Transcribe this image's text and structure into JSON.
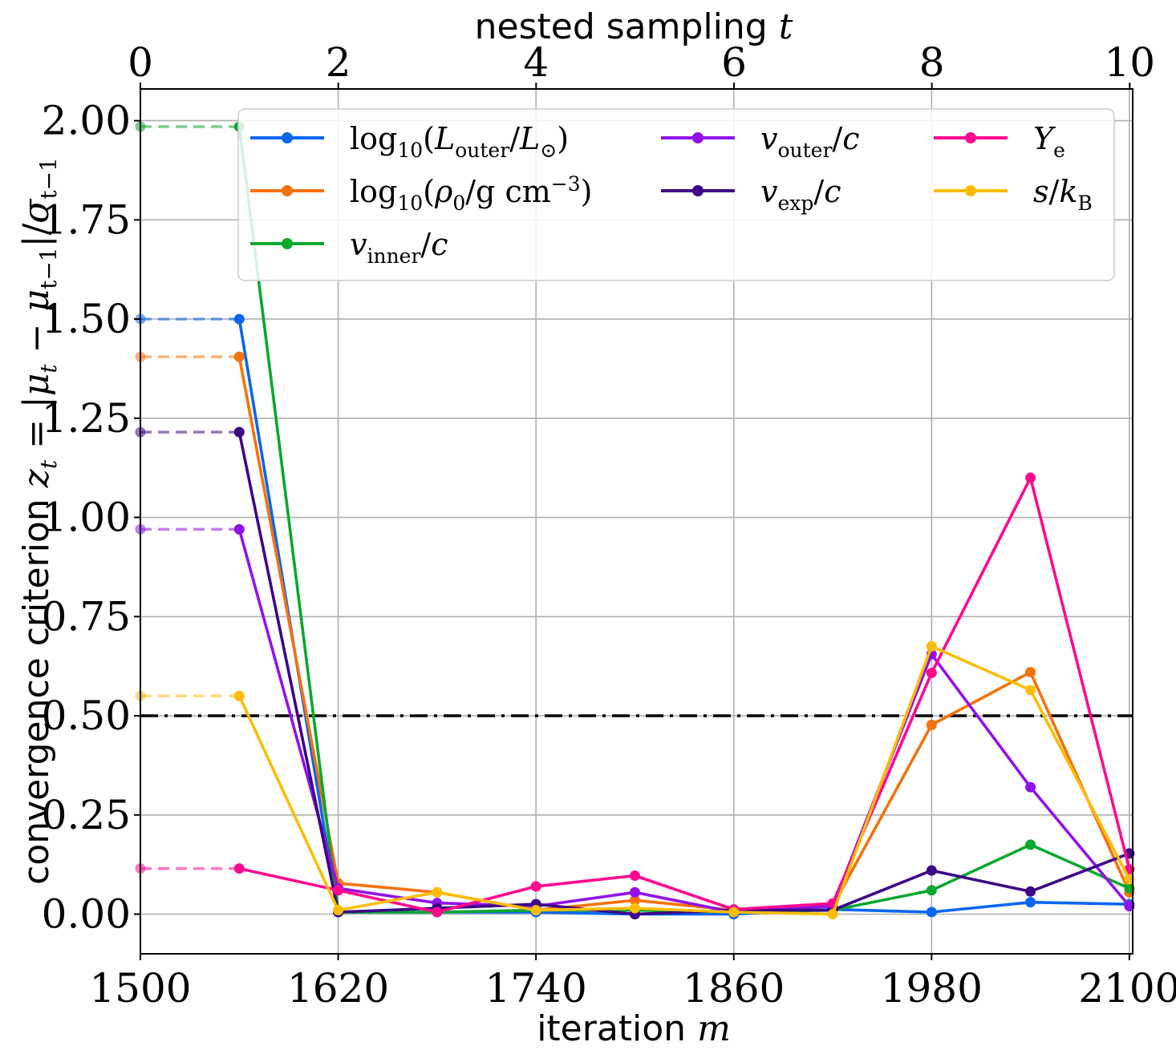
{
  "chart_data": {
    "type": "line",
    "xlabel": "iteration m",
    "xlabel_top": "nested sampling t",
    "ylabel": "convergence criterion z_t = |μ_t − μ_{t−1}|/σ_{t−1}",
    "xlim": [
      1500,
      2102
    ],
    "ylim": [
      -0.1,
      2.08
    ],
    "top_xlim": [
      0,
      10.03
    ],
    "x_ticks": [
      1500,
      1620,
      1740,
      1860,
      1980,
      2100
    ],
    "y_ticks": [
      0.0,
      0.25,
      0.5,
      0.75,
      1.0,
      1.25,
      1.5,
      1.75,
      2.0
    ],
    "y_tick_labels": [
      "0.00",
      "0.25",
      "0.50",
      "0.75",
      "1.00",
      "1.25",
      "1.50",
      "1.75",
      "2.00"
    ],
    "top_ticks": [
      0,
      2,
      4,
      6,
      8,
      10
    ],
    "grid": true,
    "legend_position": "top-right",
    "threshold": 0.5,
    "x": [
      1560,
      1620,
      1680,
      1740,
      1800,
      1860,
      1920,
      1980,
      2040,
      2100
    ],
    "series": [
      {
        "name": "log10(L_outer/L_⊙)",
        "color": "#0a66f0",
        "values": [
          1.5,
          0.005,
          0.005,
          0.005,
          0.0,
          0.0,
          0.012,
          0.005,
          0.03,
          0.025
        ]
      },
      {
        "name": "log10(ρ0/g cm^-3)",
        "color": "#f5720c",
        "values": [
          1.405,
          0.078,
          0.055,
          0.01,
          0.035,
          0.01,
          0.02,
          0.477,
          0.61,
          0.055
        ]
      },
      {
        "name": "v_inner/c",
        "color": "#0aa82e",
        "values": [
          1.985,
          0.005,
          0.005,
          0.01,
          0.01,
          0.005,
          0.01,
          0.06,
          0.175,
          0.065
        ]
      },
      {
        "name": "v_outer/c",
        "color": "#9212e8",
        "values": [
          0.97,
          0.065,
          0.028,
          0.02,
          0.055,
          0.005,
          0.02,
          0.655,
          0.32,
          0.02
        ]
      },
      {
        "name": "v_exp/c",
        "color": "#3d0686",
        "values": [
          1.215,
          0.005,
          0.015,
          0.025,
          0.0,
          0.01,
          0.01,
          0.11,
          0.057,
          0.153
        ]
      },
      {
        "name": "Y_e",
        "color": "#ff0890",
        "values": [
          0.115,
          0.06,
          0.005,
          0.07,
          0.097,
          0.012,
          0.027,
          0.608,
          1.1,
          0.113
        ]
      },
      {
        "name": "s/k_B",
        "color": "#fbbd08",
        "values": [
          0.55,
          0.01,
          0.055,
          0.01,
          0.015,
          0.005,
          0.0,
          0.675,
          0.565,
          0.088
        ]
      }
    ],
    "initial_dashed_from_x": 1500
  }
}
